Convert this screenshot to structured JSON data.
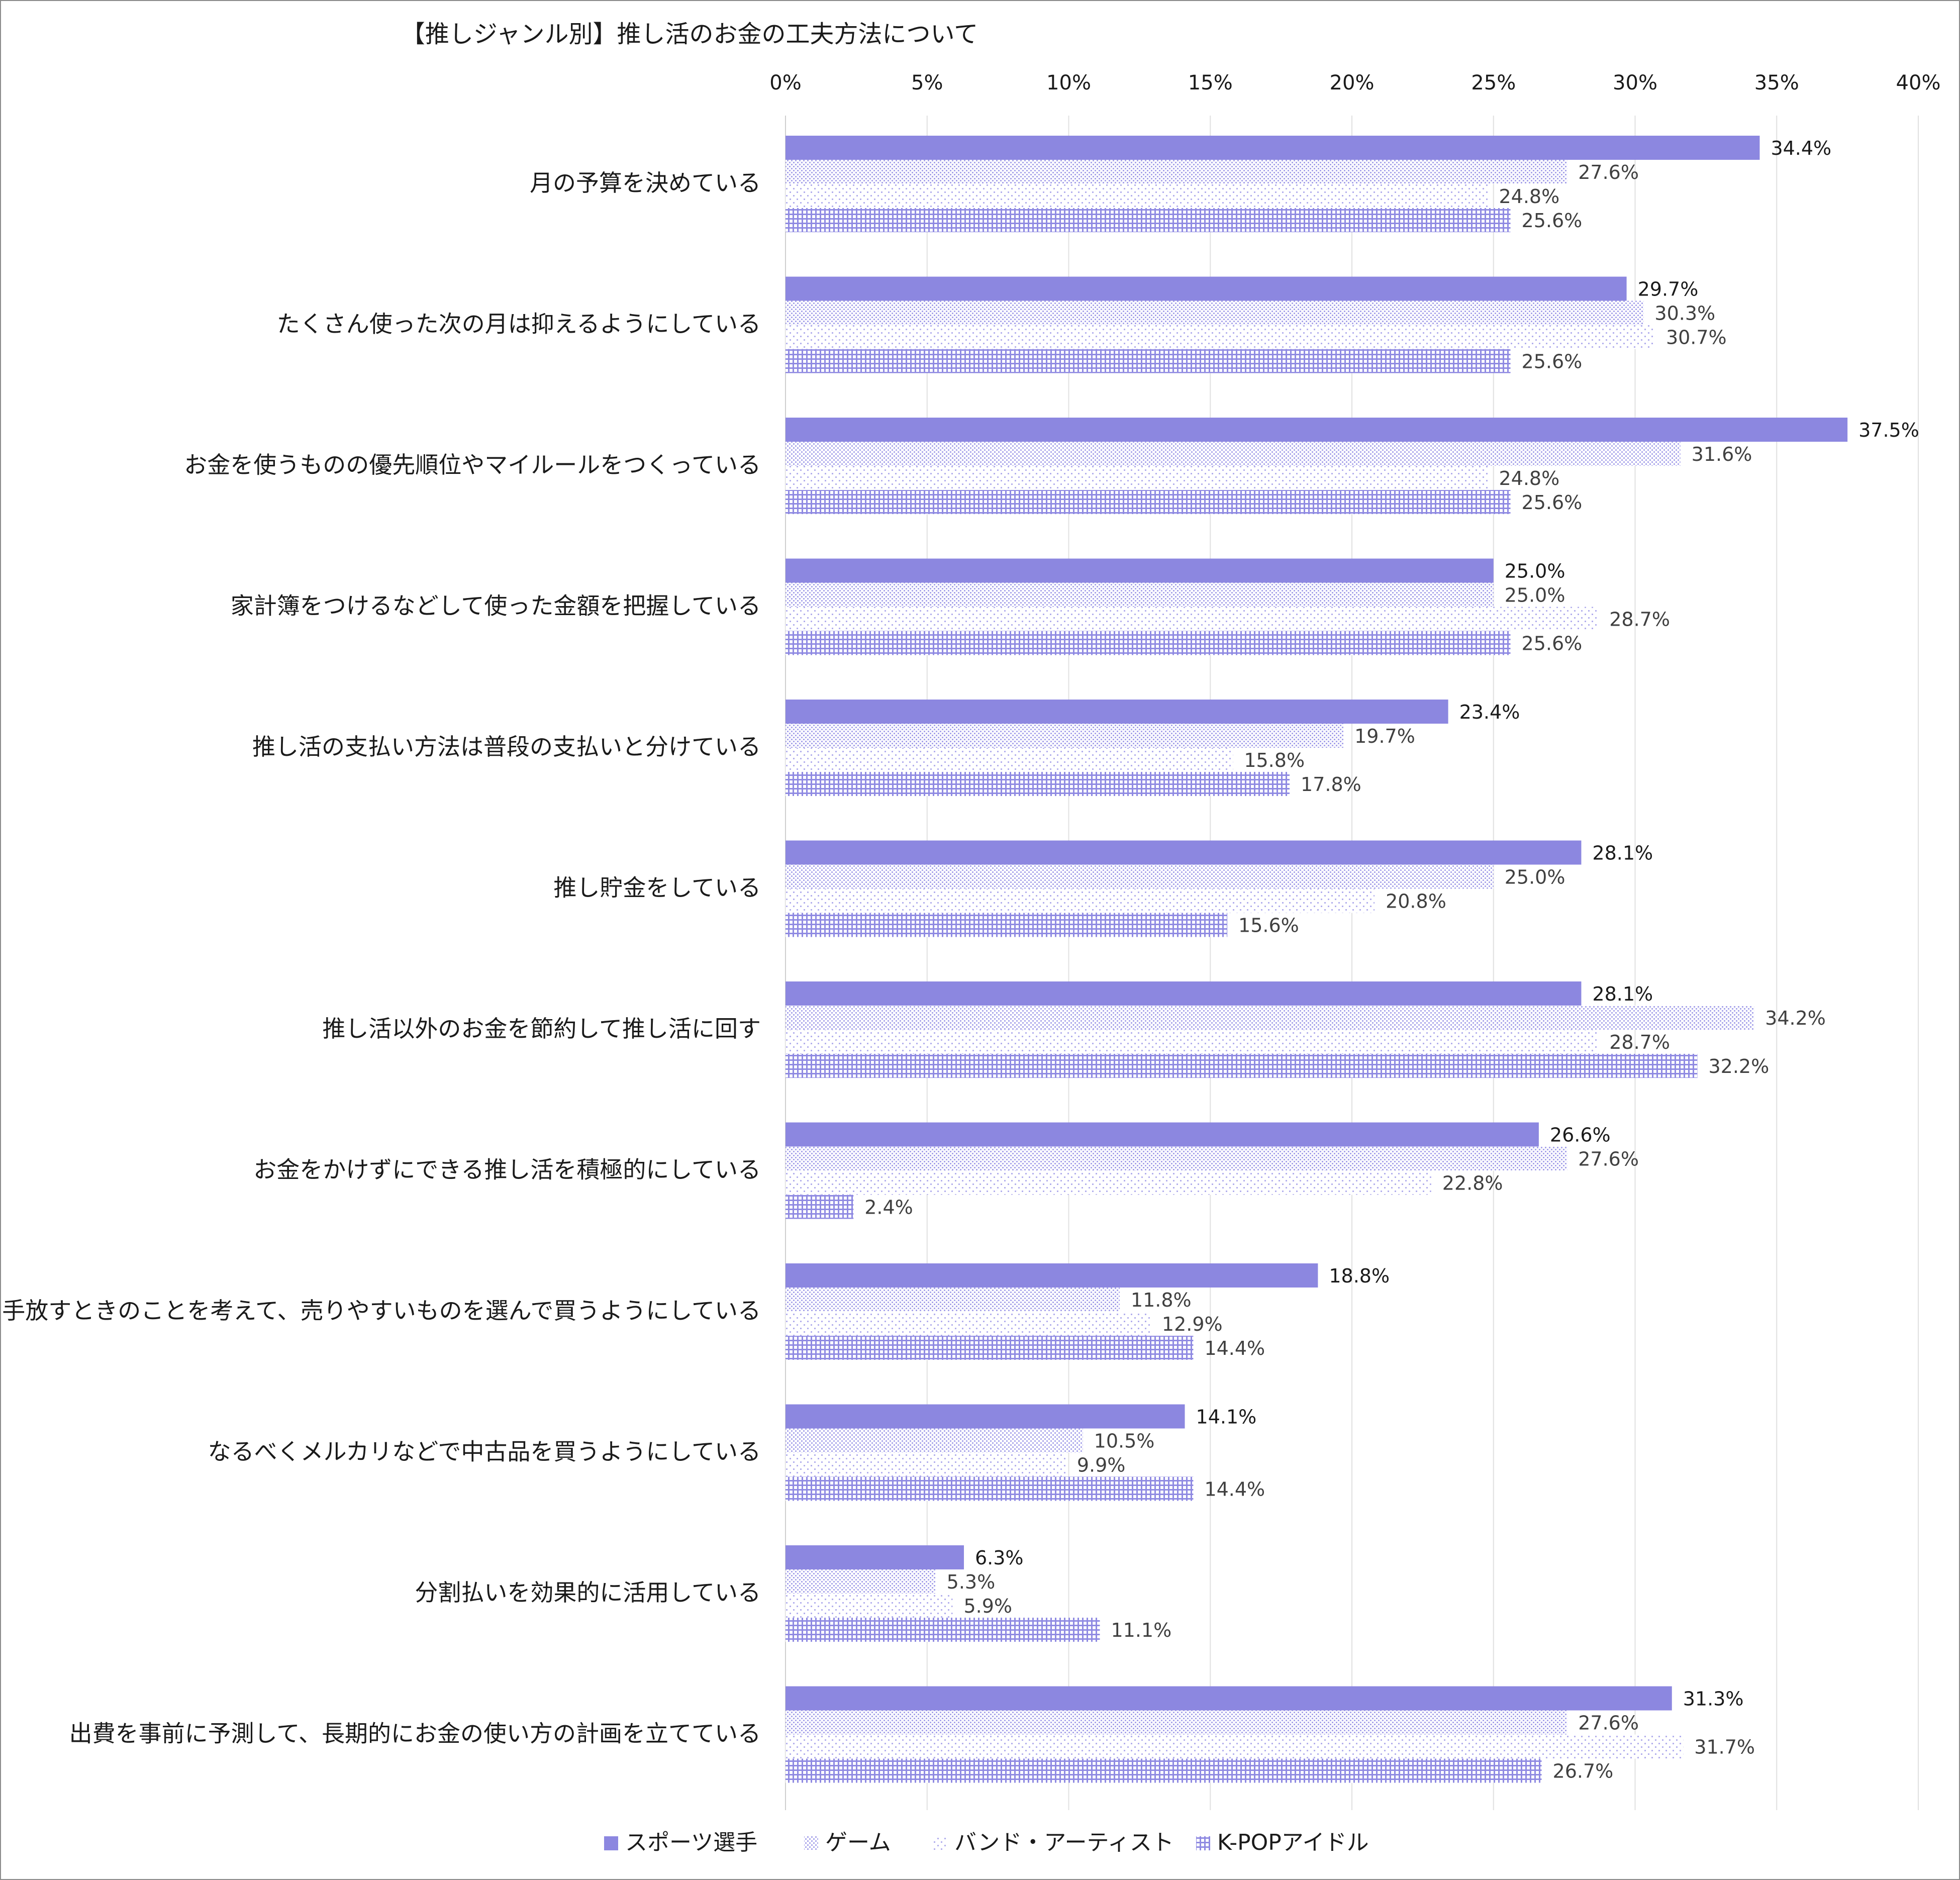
{
  "chart_data": {
    "type": "bar",
    "orientation": "horizontal",
    "title": "【推しジャンル別】推し活のお金の工夫方法について",
    "xlabel": "",
    "ylabel": "",
    "xlim": [
      0,
      40
    ],
    "x_ticks": [
      0,
      5,
      10,
      15,
      20,
      25,
      30,
      35,
      40
    ],
    "x_tick_labels": [
      "0%",
      "5%",
      "10%",
      "15%",
      "20%",
      "25%",
      "30%",
      "35%",
      "40%"
    ],
    "x_axis_position": "top",
    "grid": true,
    "legend_position": "bottom",
    "categories": [
      "月の予算を決めている",
      "たくさん使った次の月は抑えるようにしている",
      "お金を使うものの優先順位やマイルールをつくっている",
      "家計簿をつけるなどして使った金額を把握している",
      "推し活の支払い方法は普段の支払いと分けている",
      "推し貯金をしている",
      "推し活以外のお金を節約して推し活に回す",
      "お金をかけずにできる推し活を積極的にしている",
      "手放すときのことを考えて、売りやすいものを選んで買うようにしている",
      "なるべくメルカリなどで中古品を買うようにしている",
      "分割払いを効果的に活用している",
      "出費を事前に予測して、長期的にお金の使い方の計画を立てている"
    ],
    "series": [
      {
        "name": "スポーツ選手",
        "pattern": "solid",
        "color": "#8c87e0",
        "values": [
          34.4,
          29.7,
          37.5,
          25.0,
          23.4,
          28.1,
          28.1,
          26.6,
          18.8,
          14.1,
          6.3,
          31.3
        ]
      },
      {
        "name": "ゲーム",
        "pattern": "dense-dots",
        "color": "#b9b6ef",
        "values": [
          27.6,
          30.3,
          31.6,
          25.0,
          19.7,
          25.0,
          34.2,
          27.6,
          11.8,
          10.5,
          5.3,
          27.6
        ]
      },
      {
        "name": "バンド・アーティスト",
        "pattern": "sparse-dots",
        "color": "#c6c3f2",
        "values": [
          24.8,
          30.7,
          24.8,
          28.7,
          15.8,
          20.8,
          28.7,
          22.8,
          12.9,
          9.9,
          5.9,
          31.7
        ]
      },
      {
        "name": "K-POPアイドル",
        "pattern": "grid",
        "color": "#9a96e5",
        "values": [
          25.6,
          25.6,
          25.6,
          25.6,
          17.8,
          15.6,
          32.2,
          2.4,
          14.4,
          14.4,
          11.1,
          26.7
        ]
      }
    ],
    "value_label_suffix": "%"
  }
}
